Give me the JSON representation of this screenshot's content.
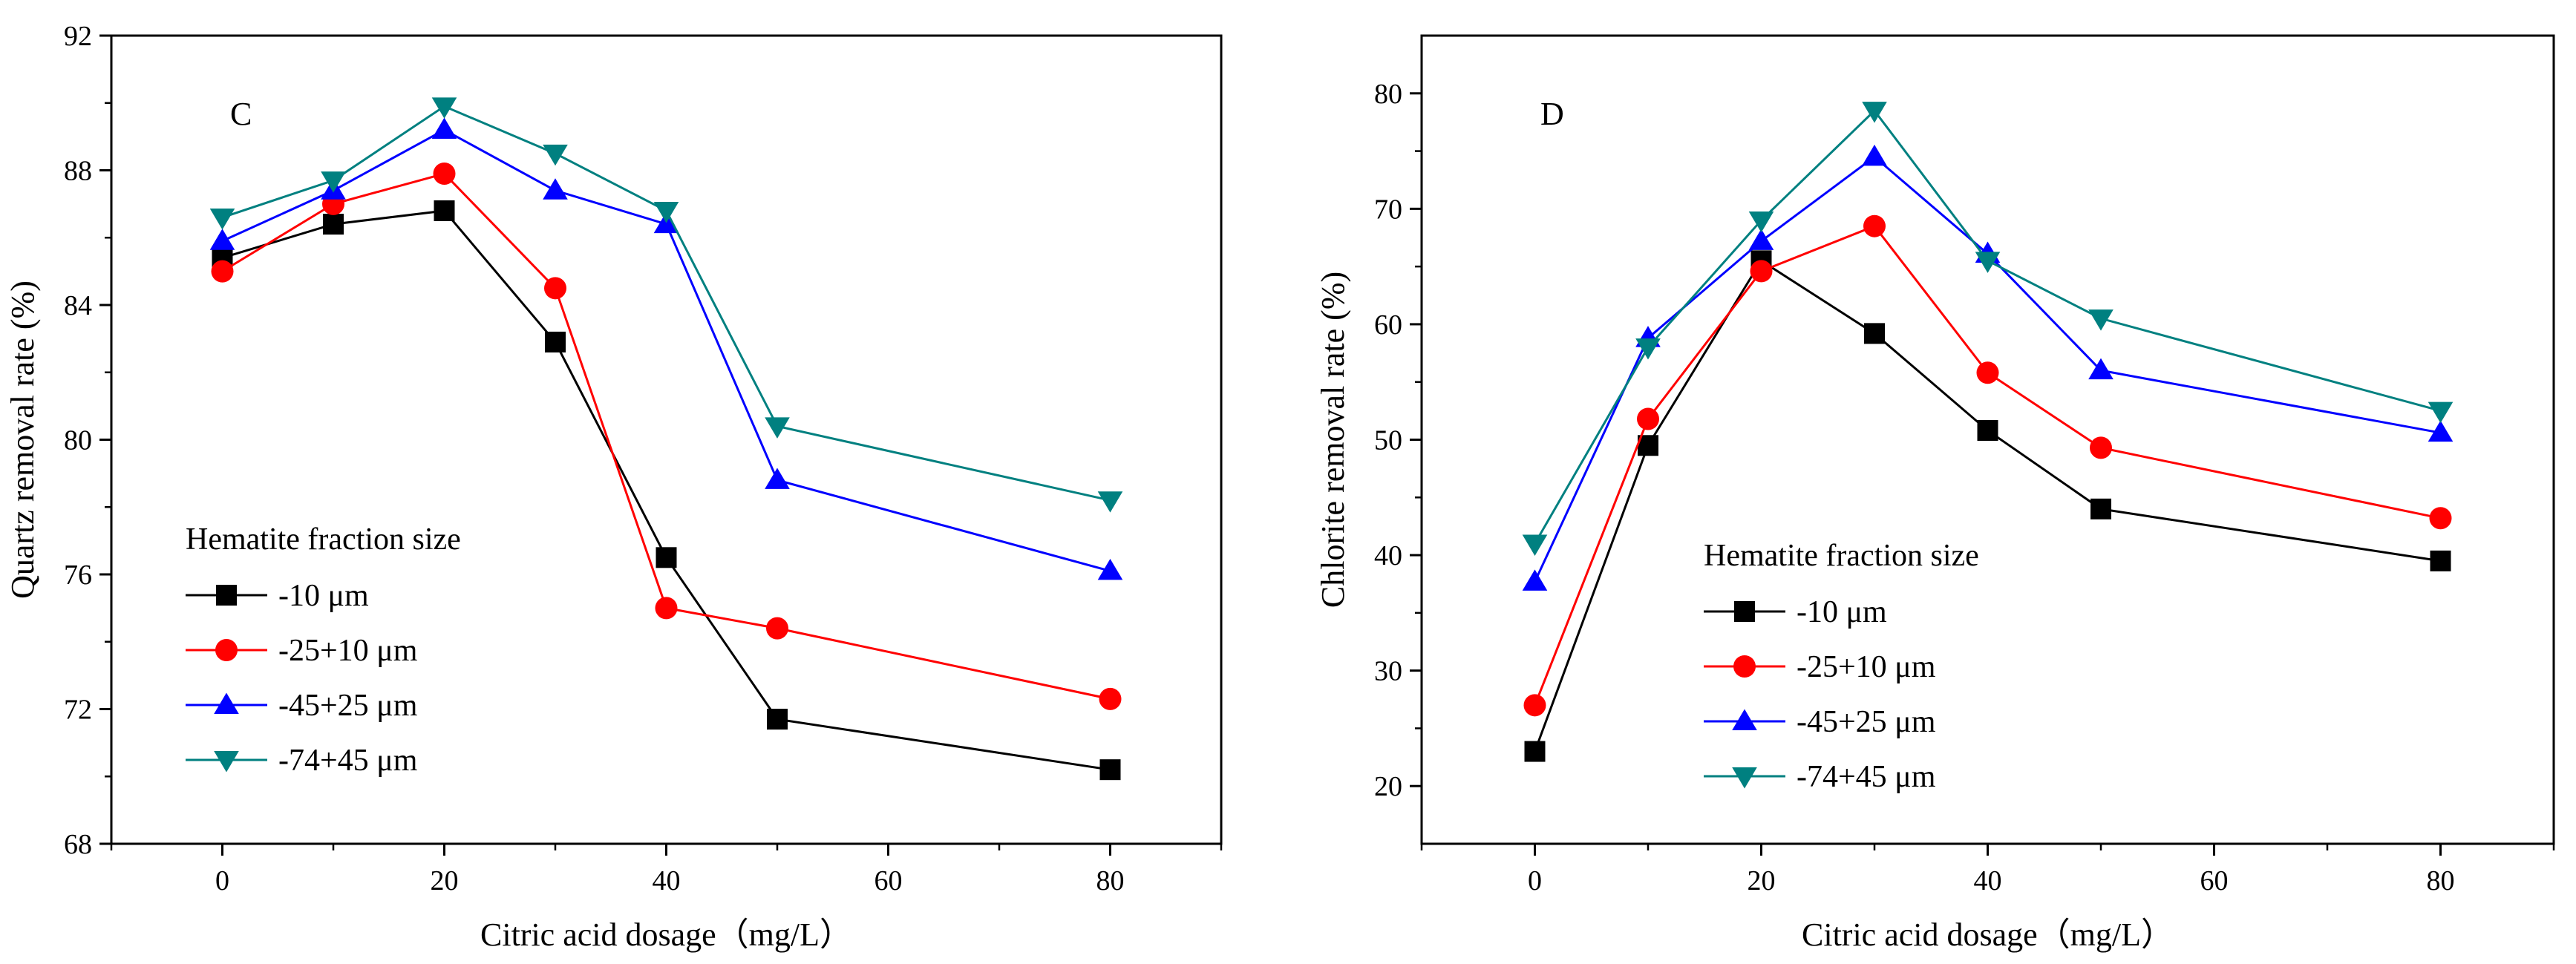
{
  "chart_data": [
    {
      "type": "line",
      "panel_label": "C",
      "xlabel": "Citric acid dosage（mg/L）",
      "ylabel": "Quartz removal rate (%)",
      "xlim": [
        -10,
        90
      ],
      "ylim": [
        68,
        92
      ],
      "xticks": [
        0,
        20,
        40,
        60,
        80
      ],
      "yticks": [
        68,
        72,
        76,
        80,
        84,
        88,
        92
      ],
      "legend_title": "Hematite fraction size",
      "legend_position": "bottom-left",
      "grid": false,
      "x": [
        0,
        10,
        20,
        30,
        40,
        50,
        80
      ],
      "series": [
        {
          "name": "-10 μm",
          "color": "#000000",
          "marker": "square",
          "values": [
            85.4,
            86.4,
            86.8,
            82.9,
            76.5,
            71.7,
            70.2
          ]
        },
        {
          "name": "-25+10 μm",
          "color": "#ff0000",
          "marker": "circle",
          "values": [
            85.0,
            87.0,
            87.9,
            84.5,
            75.0,
            74.4,
            72.3
          ]
        },
        {
          "name": "-45+25 μm",
          "color": "#0000ff",
          "marker": "triangle-up",
          "values": [
            85.9,
            87.4,
            89.2,
            87.4,
            86.4,
            78.8,
            76.1
          ]
        },
        {
          "name": "-74+45 μm",
          "color": "#008080",
          "marker": "triangle-down",
          "values": [
            86.6,
            87.7,
            89.9,
            88.5,
            86.8,
            80.4,
            78.2
          ]
        }
      ]
    },
    {
      "type": "line",
      "panel_label": "D",
      "xlabel": "Citric acid dosage（mg/L）",
      "ylabel": "Chlorite removal rate (%)",
      "xlim": [
        -10,
        90
      ],
      "ylim": [
        15,
        85
      ],
      "xticks": [
        0,
        20,
        40,
        60,
        80
      ],
      "yticks": [
        20,
        30,
        40,
        50,
        60,
        70,
        80
      ],
      "legend_title": "Hematite fraction size",
      "legend_position": "bottom-center",
      "grid": false,
      "x": [
        0,
        10,
        20,
        30,
        40,
        50,
        80
      ],
      "series": [
        {
          "name": "-10 μm",
          "color": "#000000",
          "marker": "square",
          "values": [
            23.0,
            49.5,
            65.5,
            59.2,
            50.8,
            44.0,
            39.5
          ]
        },
        {
          "name": "-25+10 μm",
          "color": "#ff0000",
          "marker": "circle",
          "values": [
            27.0,
            51.8,
            64.6,
            68.5,
            55.8,
            49.3,
            43.2
          ]
        },
        {
          "name": "-45+25 μm",
          "color": "#0000ff",
          "marker": "triangle-up",
          "values": [
            37.7,
            58.8,
            67.2,
            74.5,
            66.1,
            56.0,
            50.6
          ]
        },
        {
          "name": "-74+45 μm",
          "color": "#008080",
          "marker": "triangle-down",
          "values": [
            41.0,
            58.0,
            69.0,
            78.5,
            65.5,
            60.5,
            52.5
          ]
        }
      ]
    }
  ]
}
